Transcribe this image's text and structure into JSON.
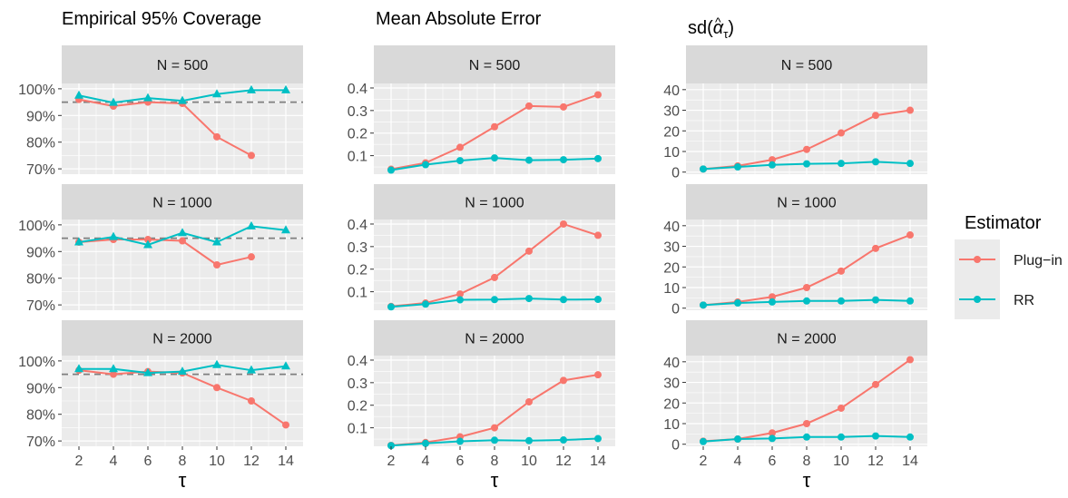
{
  "x_ticks": [
    "2",
    "4",
    "6",
    "8",
    "10",
    "12",
    "14"
  ],
  "x_label": "τ",
  "legend": {
    "title": "Estimator",
    "items": [
      {
        "label": "Plug−in",
        "color": "#F8766D"
      },
      {
        "label": "RR",
        "color": "#00BFC4"
      }
    ]
  },
  "columns": [
    {
      "title": "Empirical 95% Coverage"
    },
    {
      "title": "Mean Absolute Error"
    },
    {
      "title_main": "sd(",
      "title_alpha": "α",
      "title_hat": "^",
      "title_sub": "τ",
      "title_end": ")"
    }
  ],
  "strips": [
    "N = 500",
    "N = 1000",
    "N = 2000"
  ],
  "chart_data": [
    {
      "type": "line",
      "title": "Empirical 95% Coverage",
      "xlabel": "τ",
      "x": [
        2,
        4,
        6,
        8,
        10,
        12,
        14
      ],
      "ylim": [
        68,
        102
      ],
      "yticks": [
        70,
        80,
        90,
        100
      ],
      "ytick_labels": [
        "70%",
        "80%",
        "90%",
        "100%"
      ],
      "reference_line": 95,
      "grid": true,
      "panels": [
        {
          "strip": "N = 500",
          "series": [
            {
              "name": "Plug−in",
              "values": [
                96,
                93.5,
                95,
                94.5,
                82,
                75,
                null
              ]
            },
            {
              "name": "RR",
              "values": [
                97.5,
                94.8,
                96.5,
                95.5,
                98,
                99.5,
                99.5
              ]
            }
          ]
        },
        {
          "strip": "N = 1000",
          "series": [
            {
              "name": "Plug−in",
              "values": [
                93.5,
                94.5,
                94.5,
                94,
                85,
                88,
                null
              ]
            },
            {
              "name": "RR",
              "values": [
                93.5,
                95.5,
                92.5,
                97,
                93.5,
                99.5,
                98
              ]
            }
          ]
        },
        {
          "strip": "N = 2000",
          "series": [
            {
              "name": "Plug−in",
              "values": [
                96.5,
                95,
                96,
                95.5,
                90,
                85,
                76
              ]
            },
            {
              "name": "RR",
              "values": [
                97,
                97,
                95.5,
                96,
                98.5,
                96.5,
                98
              ]
            }
          ]
        }
      ]
    },
    {
      "type": "line",
      "title": "Mean Absolute Error",
      "xlabel": "τ",
      "x": [
        2,
        4,
        6,
        8,
        10,
        12,
        14
      ],
      "ylim": [
        0.018,
        0.42
      ],
      "yticks": [
        0.1,
        0.2,
        0.3,
        0.4
      ],
      "ytick_labels": [
        "0.1",
        "0.2",
        "0.3",
        "0.4"
      ],
      "grid": true,
      "panels": [
        {
          "strip": "N = 500",
          "series": [
            {
              "name": "Plug−in",
              "values": [
                0.04,
                0.068,
                0.137,
                0.228,
                0.32,
                0.316,
                0.37
              ]
            },
            {
              "name": "RR",
              "values": [
                0.036,
                0.06,
                0.078,
                0.09,
                0.08,
                0.082,
                0.087
              ]
            }
          ]
        },
        {
          "strip": "N = 1000",
          "series": [
            {
              "name": "Plug−in",
              "values": [
                0.035,
                0.05,
                0.09,
                0.163,
                0.28,
                0.4,
                0.35
              ]
            },
            {
              "name": "RR",
              "values": [
                0.033,
                0.045,
                0.064,
                0.065,
                0.07,
                0.065,
                0.066
              ]
            }
          ]
        },
        {
          "strip": "N = 2000",
          "series": [
            {
              "name": "Plug−in",
              "values": [
                0.022,
                0.035,
                0.06,
                0.1,
                0.215,
                0.31,
                0.335
              ]
            },
            {
              "name": "RR",
              "values": [
                0.021,
                0.031,
                0.04,
                0.045,
                0.043,
                0.046,
                0.052
              ]
            }
          ]
        }
      ]
    },
    {
      "type": "line",
      "title": "sd(α̂τ)",
      "xlabel": "τ",
      "x": [
        2,
        4,
        6,
        8,
        10,
        12,
        14
      ],
      "ylim": [
        -1,
        43
      ],
      "yticks": [
        0,
        10,
        20,
        30,
        40
      ],
      "ytick_labels": [
        "0",
        "10",
        "20",
        "30",
        "40"
      ],
      "grid": true,
      "panels": [
        {
          "strip": "N = 500",
          "series": [
            {
              "name": "Plug−in",
              "values": [
                1.5,
                3,
                6,
                11,
                19,
                27.5,
                30
              ]
            },
            {
              "name": "RR",
              "values": [
                1.5,
                2.5,
                3.5,
                4,
                4.2,
                5,
                4.2
              ]
            }
          ]
        },
        {
          "strip": "N = 1000",
          "series": [
            {
              "name": "Plug−in",
              "values": [
                1.5,
                3,
                5.5,
                10,
                18,
                29,
                35.5
              ]
            },
            {
              "name": "RR",
              "values": [
                1.5,
                2.5,
                3,
                3.5,
                3.5,
                4,
                3.5
              ]
            }
          ]
        },
        {
          "strip": "N = 2000",
          "series": [
            {
              "name": "Plug−in",
              "values": [
                1.5,
                2.5,
                5.5,
                10,
                17.5,
                29,
                41
              ]
            },
            {
              "name": "RR",
              "values": [
                1.3,
                2.5,
                2.8,
                3.5,
                3.5,
                4,
                3.5
              ]
            }
          ]
        }
      ]
    }
  ]
}
